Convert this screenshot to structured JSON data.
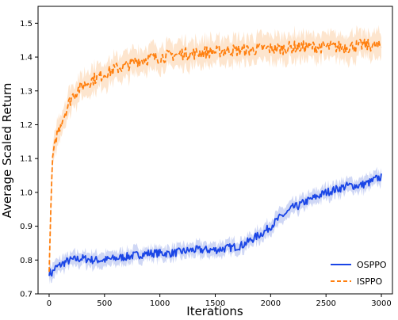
{
  "chart_data": {
    "type": "line",
    "title": "",
    "xlabel": "Iterations",
    "ylabel": "Average Scaled Return",
    "xlim": [
      -100,
      3100
    ],
    "ylim": [
      0.7,
      1.55
    ],
    "xticks": [
      0,
      500,
      1000,
      1500,
      2000,
      2500,
      3000
    ],
    "yticks": [
      0.7,
      0.8,
      0.9,
      1.0,
      1.1,
      1.2,
      1.3,
      1.4,
      1.5
    ],
    "xtick_labels": [
      "0",
      "500",
      "1000",
      "1500",
      "2000",
      "2500",
      "3000"
    ],
    "ytick_labels": [
      "0.7",
      "0.8",
      "0.9",
      "1.0",
      "1.1",
      "1.2",
      "1.3",
      "1.4",
      "1.5"
    ],
    "grid": false,
    "legend_position": "bottom-right",
    "series": [
      {
        "name": "OSPPO",
        "color": "#1a45e6",
        "band_color": "#c7d0f3",
        "line_style": "solid",
        "x": [
          0,
          25,
          50,
          100,
          150,
          200,
          300,
          400,
          500,
          600,
          700,
          800,
          900,
          1000,
          1100,
          1200,
          1300,
          1400,
          1500,
          1600,
          1700,
          1750,
          1800,
          1850,
          1900,
          1950,
          2000,
          2050,
          2100,
          2150,
          2200,
          2250,
          2300,
          2400,
          2500,
          2600,
          2700,
          2800,
          2900,
          2950,
          3000
        ],
        "y": [
          0.765,
          0.76,
          0.775,
          0.785,
          0.795,
          0.8,
          0.805,
          0.8,
          0.8,
          0.805,
          0.81,
          0.815,
          0.82,
          0.82,
          0.82,
          0.825,
          0.83,
          0.83,
          0.83,
          0.835,
          0.84,
          0.845,
          0.855,
          0.865,
          0.875,
          0.885,
          0.9,
          0.915,
          0.93,
          0.94,
          0.955,
          0.96,
          0.97,
          0.985,
          1.0,
          1.01,
          1.02,
          1.02,
          1.03,
          1.04,
          1.045
        ],
        "band_width": 0.025
      },
      {
        "name": "ISPPO",
        "color": "#ff7f0e",
        "band_color": "#fde0c6",
        "line_style": "dashed",
        "x": [
          0,
          15,
          30,
          50,
          75,
          100,
          150,
          200,
          250,
          300,
          350,
          400,
          500,
          600,
          700,
          800,
          900,
          1000,
          1100,
          1200,
          1300,
          1400,
          1500,
          1600,
          1700,
          1800,
          1900,
          2000,
          2100,
          2200,
          2300,
          2400,
          2500,
          2600,
          2700,
          2800,
          2900,
          3000
        ],
        "y": [
          0.765,
          0.95,
          1.1,
          1.15,
          1.175,
          1.2,
          1.24,
          1.28,
          1.3,
          1.315,
          1.325,
          1.335,
          1.35,
          1.365,
          1.375,
          1.39,
          1.395,
          1.4,
          1.405,
          1.41,
          1.41,
          1.415,
          1.415,
          1.42,
          1.42,
          1.42,
          1.425,
          1.425,
          1.425,
          1.43,
          1.43,
          1.43,
          1.43,
          1.43,
          1.43,
          1.435,
          1.435,
          1.43
        ],
        "band_width": 0.045
      }
    ]
  }
}
